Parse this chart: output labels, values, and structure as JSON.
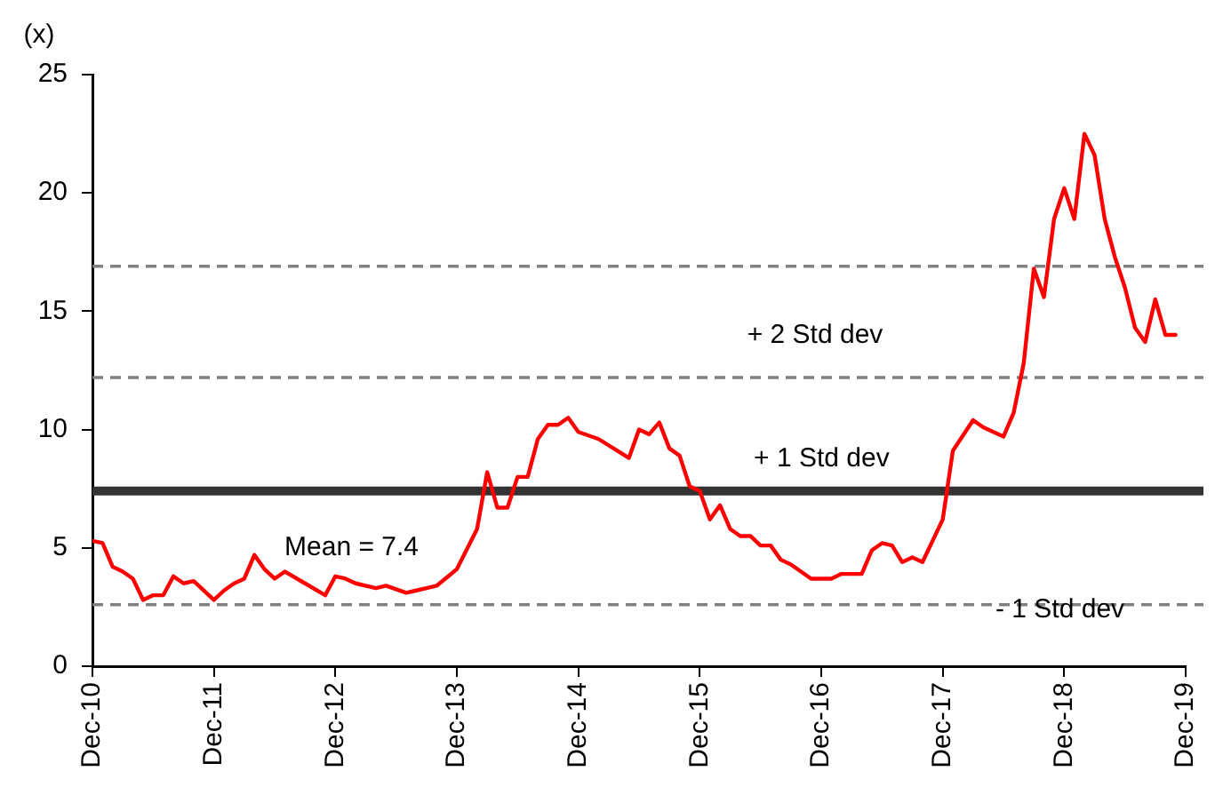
{
  "chart_data": {
    "type": "line",
    "ylabel": "(x)",
    "x": [
      "2010-12",
      "2011-01",
      "2011-02",
      "2011-03",
      "2011-04",
      "2011-05",
      "2011-06",
      "2011-07",
      "2011-08",
      "2011-09",
      "2011-10",
      "2011-12",
      "2012-01",
      "2012-02",
      "2012-03",
      "2012-04",
      "2012-05",
      "2012-06",
      "2012-07",
      "2012-09",
      "2012-11",
      "2012-12",
      "2013-01",
      "2013-02",
      "2013-04",
      "2013-05",
      "2013-07",
      "2013-08",
      "2013-09",
      "2013-10",
      "2013-12",
      "2014-02",
      "2014-03",
      "2014-04",
      "2014-05",
      "2014-06",
      "2014-07",
      "2014-08",
      "2014-09",
      "2014-10",
      "2014-11",
      "2014-12",
      "2015-02",
      "2015-05",
      "2015-06",
      "2015-07",
      "2015-08",
      "2015-09",
      "2015-10",
      "2015-11",
      "2015-12",
      "2016-01",
      "2016-02",
      "2016-03",
      "2016-04",
      "2016-05",
      "2016-06",
      "2016-07",
      "2016-08",
      "2016-09",
      "2016-11",
      "2017-01",
      "2017-02",
      "2017-04",
      "2017-05",
      "2017-06",
      "2017-07",
      "2017-08",
      "2017-09",
      "2017-10",
      "2017-12",
      "2018-01",
      "2018-03",
      "2018-04",
      "2018-06",
      "2018-07",
      "2018-08",
      "2018-09",
      "2018-10",
      "2018-11",
      "2018-12",
      "2019-01",
      "2019-02",
      "2019-03",
      "2019-04",
      "2019-05",
      "2019-06",
      "2019-07",
      "2019-08",
      "2019-09",
      "2019-10",
      "2019-11"
    ],
    "series": [
      {
        "color": "#ff0000",
        "values": [
          5.3,
          5.2,
          4.2,
          4.0,
          3.7,
          2.8,
          3.0,
          3.0,
          3.8,
          3.5,
          3.6,
          2.8,
          3.2,
          3.5,
          3.7,
          4.7,
          4.1,
          3.7,
          4.0,
          3.5,
          3.0,
          3.8,
          3.7,
          3.5,
          3.3,
          3.4,
          3.1,
          3.2,
          3.3,
          3.4,
          4.1,
          5.8,
          8.2,
          6.7,
          6.7,
          8.0,
          8.0,
          9.6,
          10.2,
          10.2,
          10.5,
          9.9,
          9.6,
          8.8,
          10.0,
          9.8,
          10.3,
          9.2,
          8.9,
          7.6,
          7.4,
          6.2,
          6.8,
          5.8,
          5.5,
          5.5,
          5.1,
          5.1,
          4.5,
          4.3,
          3.7,
          3.7,
          3.9,
          3.9,
          4.9,
          5.2,
          5.1,
          4.4,
          4.6,
          4.4,
          6.2,
          9.1,
          10.4,
          10.1,
          9.7,
          10.7,
          12.8,
          16.8,
          15.6,
          18.9,
          20.2,
          18.9,
          22.5,
          21.6,
          18.9,
          17.3,
          16.0,
          14.3,
          13.7,
          15.5,
          14.0,
          14.0
        ]
      }
    ],
    "xlim": [
      "2010-12",
      "2019-12"
    ],
    "xticks": [
      {
        "value": "2010-12",
        "label": "Dec-10"
      },
      {
        "value": "2011-12",
        "label": "Dec-11"
      },
      {
        "value": "2012-12",
        "label": "Dec-12"
      },
      {
        "value": "2013-12",
        "label": "Dec-13"
      },
      {
        "value": "2014-12",
        "label": "Dec-14"
      },
      {
        "value": "2015-12",
        "label": "Dec-15"
      },
      {
        "value": "2016-12",
        "label": "Dec-16"
      },
      {
        "value": "2017-12",
        "label": "Dec-17"
      },
      {
        "value": "2018-12",
        "label": "Dec-18"
      },
      {
        "value": "2019-12",
        "label": "Dec-19"
      }
    ],
    "ylim": [
      0,
      25
    ],
    "yticks": [
      0,
      5,
      10,
      15,
      20,
      25
    ],
    "ref_lines": [
      {
        "axis": "y",
        "value": 7.4,
        "label": "Mean = 7.4",
        "color": "#333333",
        "line_style": "solid"
      },
      {
        "axis": "y",
        "value": 12.2,
        "label": "+ 1 Std dev",
        "color": "#808080",
        "line_style": "dashed"
      },
      {
        "axis": "y",
        "value": 16.9,
        "label": "+ 2 Std dev",
        "color": "#808080",
        "line_style": "dashed"
      },
      {
        "axis": "y",
        "value": 2.6,
        "label": "- 1 Std dev",
        "color": "#808080",
        "line_style": "dashed"
      }
    ],
    "marker": "none",
    "line_style": "solid"
  }
}
